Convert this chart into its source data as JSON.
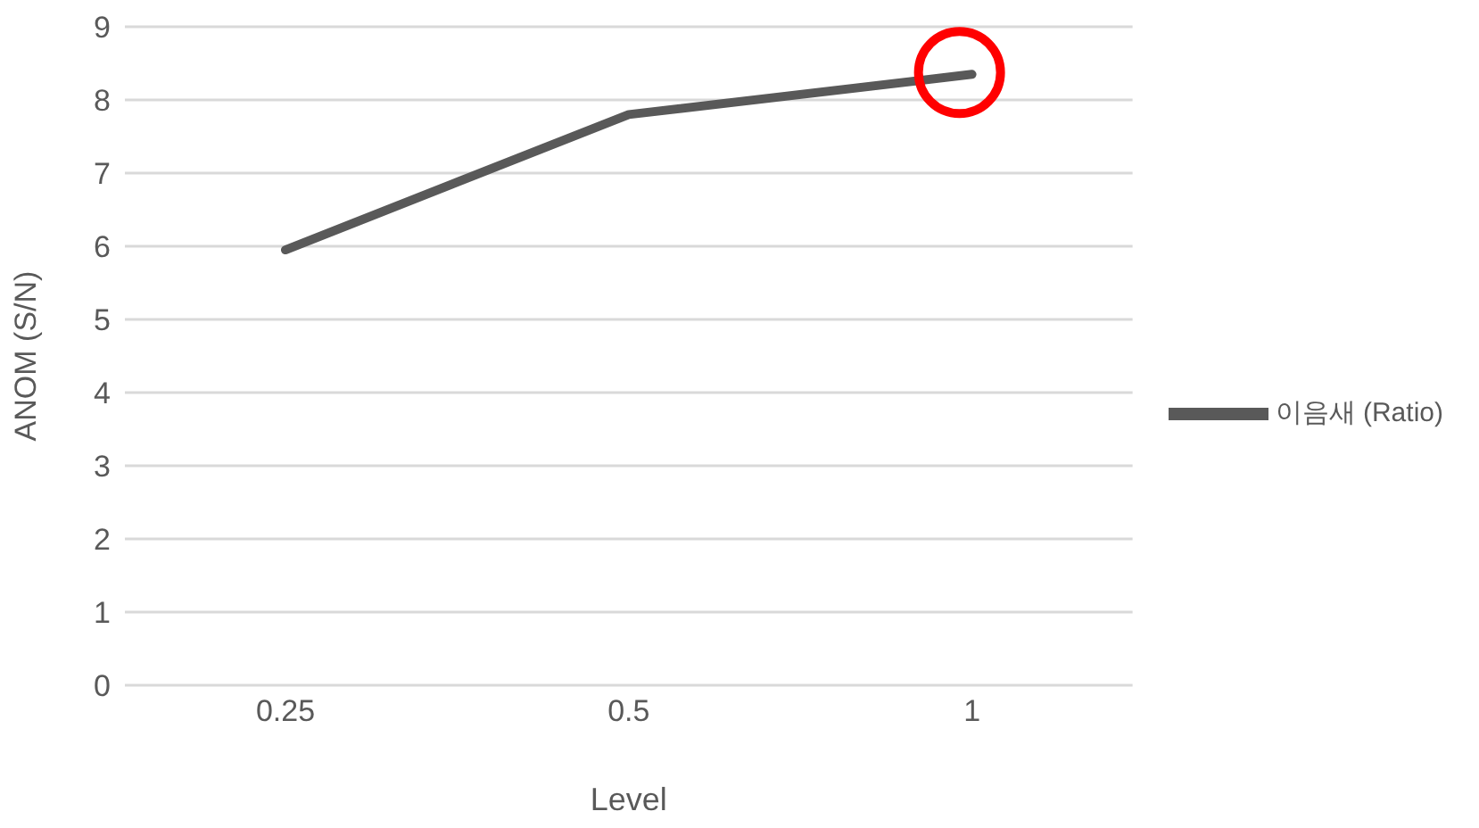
{
  "chart_data": {
    "type": "line",
    "xlabel": "Level",
    "ylabel": "ANOM (S/N)",
    "categories": [
      "0.25",
      "0.5",
      "1"
    ],
    "series": [
      {
        "name": "이음새 (Ratio)",
        "color": "#595959",
        "values": [
          5.95,
          7.8,
          8.35
        ]
      }
    ],
    "ylim": [
      0,
      9
    ],
    "yticks": [
      0,
      1,
      2,
      3,
      4,
      5,
      6,
      7,
      8,
      9
    ],
    "grid": "y",
    "legend": "right",
    "marker": "none",
    "line_style": "solid"
  }
}
